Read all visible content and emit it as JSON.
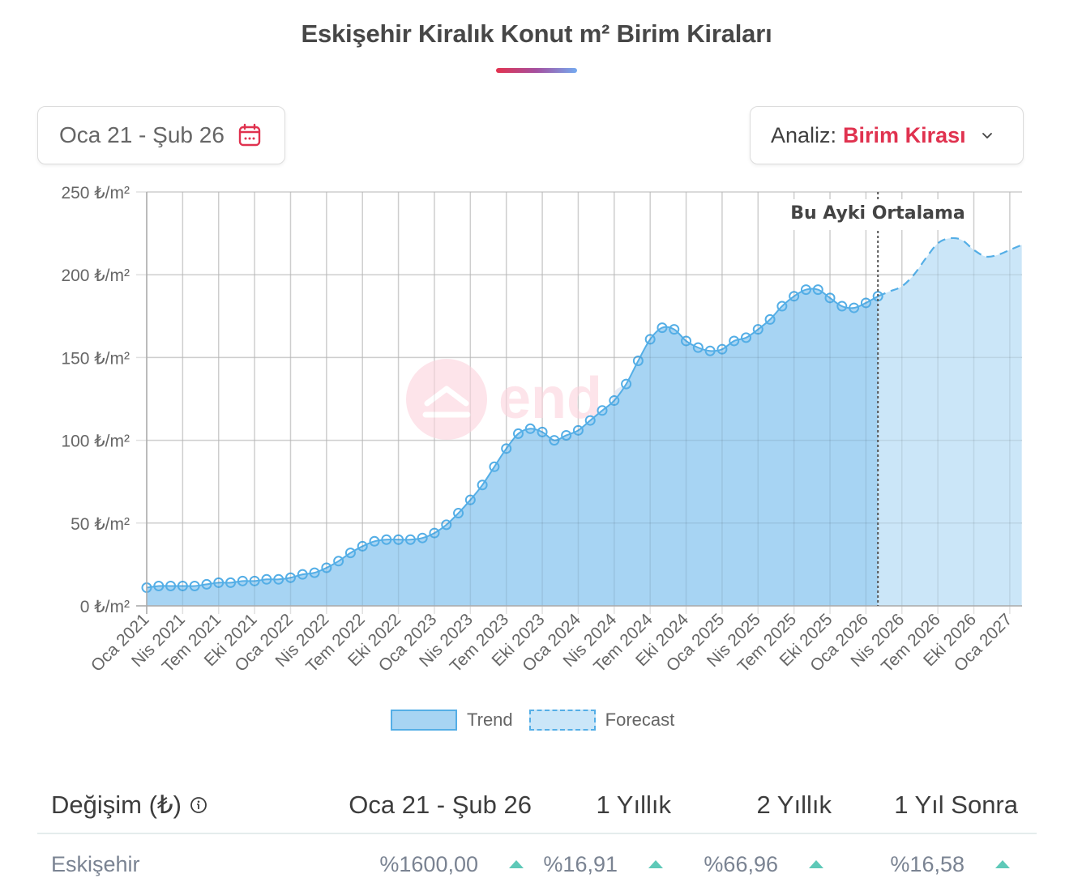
{
  "header": {
    "title": "Eskişehir Kiralık Konut m² Birim Kiraları"
  },
  "controls": {
    "date_range": "Oca 21 - Şub 26",
    "date_icon": "calendar-icon",
    "analysis_label": "Analiz:",
    "analysis_value": "Birim Kirası",
    "analysis_icon": "chevron-down-icon"
  },
  "colors": {
    "accent": "#e0324f",
    "trend_fill": "#a7d4f3",
    "trend_line": "#54aee6",
    "forecast_fill": "#cbe6f8",
    "up_arrow": "#5ec9b8"
  },
  "watermark": "endeksa",
  "legend": {
    "trend": "Trend",
    "forecast": "Forecast"
  },
  "annotation": "Bu Ayki Ortalama",
  "chart_data": {
    "type": "area",
    "title": "Eskişehir Kiralık Konut m² Birim Kiraları",
    "xlabel": "",
    "ylabel": "₺/m²",
    "ylim": [
      0,
      250
    ],
    "y_ticks": [
      "0 ₺/m²",
      "50 ₺/m²",
      "100 ₺/m²",
      "150 ₺/m²",
      "200 ₺/m²",
      "250 ₺/m²"
    ],
    "x_tick_labels": [
      "Oca 2021",
      "Nis 2021",
      "Tem 2021",
      "Eki 2021",
      "Oca 2022",
      "Nis 2022",
      "Tem 2022",
      "Eki 2022",
      "Oca 2023",
      "Nis 2023",
      "Tem 2023",
      "Eki 2023",
      "Oca 2024",
      "Nis 2024",
      "Tem 2024",
      "Eki 2024",
      "Oca 2025",
      "Nis 2025",
      "Tem 2025",
      "Eki 2025",
      "Oca 2026",
      "Nis 2026",
      "Tem 2026",
      "Eki 2026",
      "Oca 2027"
    ],
    "grid": true,
    "legend_position": "bottom",
    "annotation": {
      "label": "Bu Ayki Ortalama",
      "x": "Şub 2026"
    },
    "series": [
      {
        "name": "Trend",
        "start": "Oca 2021",
        "end": "Şub 2026",
        "frequency": "monthly",
        "values": [
          11,
          12,
          12,
          12,
          12,
          13,
          14,
          14,
          15,
          15,
          16,
          16,
          17,
          19,
          20,
          23,
          27,
          32,
          36,
          39,
          40,
          40,
          40,
          41,
          44,
          49,
          56,
          64,
          73,
          84,
          95,
          104,
          107,
          105,
          100,
          103,
          106,
          112,
          118,
          124,
          134,
          148,
          161,
          168,
          167,
          160,
          156,
          154,
          155,
          160,
          162,
          167,
          173,
          181,
          187,
          191,
          191,
          186,
          181,
          180,
          183,
          187
        ]
      },
      {
        "name": "Forecast",
        "start": "Şub 2026",
        "end": "Şub 2027",
        "frequency": "monthly",
        "values": [
          187,
          190,
          193,
          200,
          210,
          219,
          222,
          221,
          215,
          211,
          212,
          215,
          218
        ]
      }
    ]
  },
  "table": {
    "headers": [
      "Değişim (₺)",
      "Oca 21 - Şub 26",
      "1 Yıllık",
      "2 Yıllık",
      "1 Yıl Sonra"
    ],
    "rows": [
      {
        "name": "Eskişehir",
        "values": [
          "%1600,00",
          "%16,91",
          "%66,96",
          "%16,58"
        ],
        "trends": [
          "up",
          "up",
          "up",
          "up"
        ]
      }
    ]
  }
}
